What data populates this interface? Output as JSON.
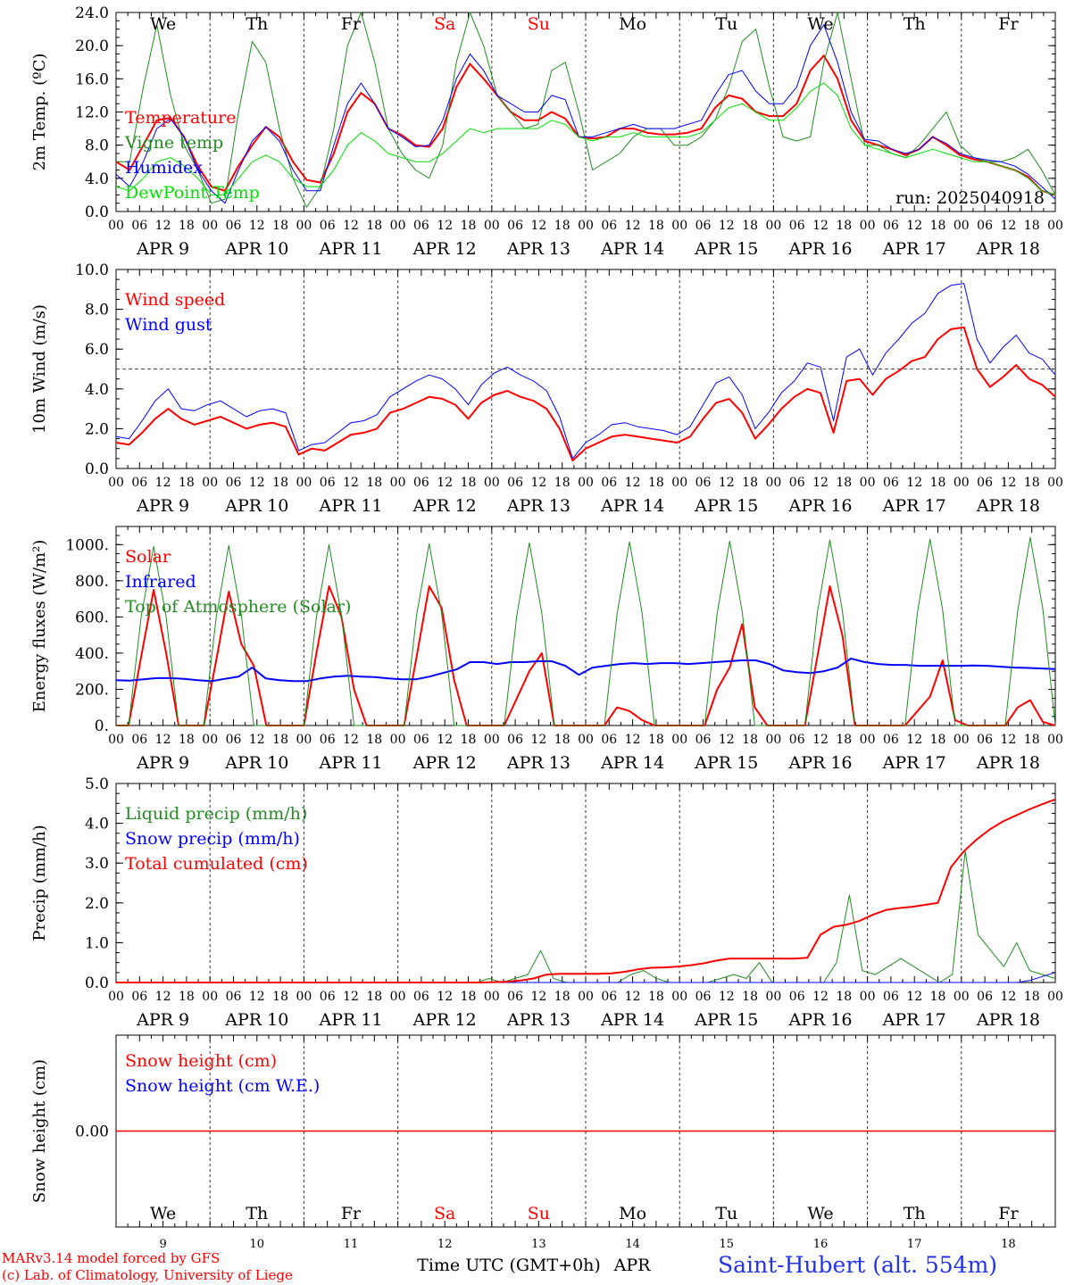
{
  "run_label": "run: 2025040918",
  "x_axis": {
    "hour_labels": [
      "00",
      "06",
      "12",
      "18"
    ],
    "day_labels": [
      "APR  9",
      "APR 10",
      "APR 11",
      "APR 12",
      "APR 13",
      "APR 14",
      "APR 15",
      "APR 16",
      "APR 17",
      "APR 18"
    ],
    "weekdays": [
      {
        "label": "We",
        "color": "#000000"
      },
      {
        "label": "Th",
        "color": "#000000"
      },
      {
        "label": "Fr",
        "color": "#000000"
      },
      {
        "label": "Sa",
        "color": "#ff0000"
      },
      {
        "label": "Su",
        "color": "#ff0000"
      },
      {
        "label": "Mo",
        "color": "#000000"
      },
      {
        "label": "Tu",
        "color": "#000000"
      },
      {
        "label": "We",
        "color": "#000000"
      },
      {
        "label": "Th",
        "color": "#000000"
      },
      {
        "label": "Fr",
        "color": "#000000"
      }
    ],
    "day_numbers": [
      "9",
      "10",
      "11",
      "12",
      "13",
      "14",
      "15",
      "16",
      "17",
      "18"
    ],
    "title": "Time UTC (GMT+0h)",
    "month": "APR"
  },
  "footer": {
    "model_line": "MARv3.14 model forced by GFS",
    "copyright_line": "(c) Lab. of Climatology, University of Liege",
    "station": "Saint-Hubert (alt. 554m)"
  },
  "chart_data": [
    {
      "type": "line",
      "ylabel": "2m Temp. (ºC)",
      "ylim": [
        0,
        24
      ],
      "yticks": [
        "0.0",
        "4.0",
        "8.0",
        "12.0",
        "16.0",
        "20.0",
        "24.0"
      ],
      "ytick_values": [
        0,
        4,
        8,
        12,
        16,
        20,
        24
      ],
      "x_hours_step": 3,
      "series": [
        {
          "name": "Temperature",
          "color": "#ff0000",
          "width": 2,
          "values": [
            6,
            5,
            8,
            11,
            11.3,
            9,
            5.5,
            3,
            2.5,
            5.5,
            8,
            10.2,
            9,
            6,
            3.8,
            3.5,
            7,
            12,
            14.3,
            13,
            10,
            9.2,
            8,
            7.8,
            10,
            15,
            17.8,
            16,
            14,
            12,
            11,
            11,
            12,
            11.2,
            9,
            8.8,
            9,
            10,
            10,
            9.5,
            9.3,
            9.3,
            9.5,
            10,
            12.5,
            14,
            13.6,
            12,
            11.5,
            11.5,
            13,
            17,
            18.8,
            16,
            11,
            8.5,
            8,
            7.5,
            6.8,
            7.5,
            9,
            8,
            6.8,
            6.3,
            6,
            5.5,
            5,
            4.2,
            2.5,
            2
          ]
        },
        {
          "name": "Vigne temp",
          "color": "#228b22",
          "width": 1,
          "values": [
            6,
            6,
            15,
            22.5,
            14,
            8,
            5,
            1,
            1.5,
            12,
            20.5,
            18,
            10,
            4,
            0.5,
            3,
            10,
            20,
            24,
            18,
            10,
            7,
            5,
            4,
            8,
            18,
            24,
            20,
            14,
            12,
            10,
            10.5,
            17,
            18,
            12,
            5,
            6,
            7,
            9,
            10,
            10,
            8,
            8,
            9,
            11,
            15,
            20.5,
            22,
            15,
            9,
            8.5,
            9,
            18,
            24,
            16,
            8,
            8,
            7,
            6.5,
            8,
            10,
            12,
            8,
            6.5,
            6,
            6,
            6.5,
            7.5,
            5,
            2
          ]
        },
        {
          "name": "Humidex",
          "color": "#0000ff",
          "width": 1,
          "values": [
            4.5,
            3,
            6,
            10,
            11.2,
            9,
            5,
            2.5,
            1,
            5,
            8.5,
            10.2,
            8.5,
            5,
            2.5,
            2.5,
            8,
            13,
            15.5,
            13,
            10,
            9,
            7.8,
            8,
            11,
            16,
            19,
            17,
            14,
            13,
            12,
            12,
            14,
            13.5,
            9,
            9,
            9.5,
            10,
            10.5,
            10,
            10,
            10,
            10.5,
            11,
            14,
            16.5,
            17,
            14.5,
            13,
            13,
            15,
            20,
            22.5,
            18,
            12,
            8.7,
            8.5,
            7.5,
            7,
            7.5,
            9,
            8.2,
            7,
            6.5,
            6.2,
            6,
            5.5,
            4.5,
            3,
            1.5
          ]
        },
        {
          "name": "DewPoint Temp",
          "color": "#00e000",
          "width": 1,
          "values": [
            3,
            2.5,
            4,
            6,
            6.5,
            5.5,
            4,
            2,
            2,
            4,
            6,
            6.8,
            6,
            4,
            3,
            3,
            5,
            8,
            9.5,
            8.5,
            7,
            6.5,
            6,
            6,
            7,
            8.5,
            10,
            9.5,
            10,
            10,
            10,
            10,
            11,
            10.5,
            9,
            8.5,
            9,
            9,
            9.5,
            9,
            9,
            9,
            9,
            9.5,
            11,
            12.5,
            13,
            12,
            11,
            11,
            12.5,
            14.5,
            15.5,
            14,
            10,
            8,
            7.5,
            7,
            6.5,
            7,
            7.5,
            7,
            6.5,
            6,
            6,
            5.5,
            5,
            4,
            2.5,
            2
          ]
        }
      ],
      "legend_position": "left"
    },
    {
      "type": "line",
      "ylabel": "10m Wind (m/s)",
      "ylim": [
        0,
        10
      ],
      "yticks": [
        "0.0",
        "2.0",
        "4.0",
        "6.0",
        "8.0",
        "10.0"
      ],
      "ytick_values": [
        0,
        2,
        4,
        6,
        8,
        10
      ],
      "reference_line": 5,
      "x_hours_step": 3,
      "series": [
        {
          "name": "Wind speed",
          "color": "#ff0000",
          "width": 2,
          "values": [
            1.3,
            1.2,
            1.8,
            2.5,
            3,
            2.5,
            2.2,
            2.4,
            2.6,
            2.3,
            2,
            2.2,
            2.3,
            2.1,
            0.7,
            1,
            0.9,
            1.3,
            1.7,
            1.8,
            2,
            2.8,
            3,
            3.3,
            3.6,
            3.5,
            3.2,
            2.5,
            3.3,
            3.7,
            3.9,
            3.6,
            3.4,
            3,
            2,
            0.4,
            1,
            1.3,
            1.6,
            1.7,
            1.6,
            1.5,
            1.4,
            1.3,
            1.6,
            2.5,
            3.3,
            3.5,
            2.8,
            1.5,
            2.2,
            3,
            3.6,
            4,
            3.8,
            1.8,
            4.4,
            4.5,
            3.7,
            4.5,
            4.9,
            5.4,
            5.6,
            6.5,
            7,
            7.1,
            5,
            4.1,
            4.6,
            5.2,
            4.5,
            4.2,
            3.6
          ]
        },
        {
          "name": "Wind gust",
          "color": "#0000ff",
          "width": 1,
          "values": [
            1.6,
            1.5,
            2.4,
            3.4,
            4,
            3,
            2.9,
            3.2,
            3.4,
            3,
            2.6,
            2.9,
            3,
            2.8,
            0.9,
            1.2,
            1.3,
            1.8,
            2.3,
            2.4,
            2.7,
            3.6,
            4,
            4.4,
            4.7,
            4.5,
            4,
            3.2,
            4.2,
            4.8,
            5.1,
            4.7,
            4.4,
            3.9,
            2.6,
            0.5,
            1.3,
            1.7,
            2.2,
            2.3,
            2.1,
            2,
            1.9,
            1.7,
            2.1,
            3.2,
            4.3,
            4.6,
            3.7,
            2,
            2.8,
            3.8,
            4.4,
            5.3,
            5.1,
            2.4,
            5.6,
            6,
            4.7,
            5.8,
            6.5,
            7.3,
            7.8,
            8.8,
            9.2,
            9.3,
            6.5,
            5.3,
            6.1,
            6.7,
            5.8,
            5.5,
            4.7
          ]
        }
      ],
      "legend_position": "left"
    },
    {
      "type": "line",
      "ylabel": "Energy fluxes (W/m²)",
      "ylim": [
        0,
        1100
      ],
      "yticks": [
        "0.",
        "200.",
        "400.",
        "600.",
        "800.",
        "1000."
      ],
      "ytick_values": [
        0,
        200,
        400,
        600,
        800,
        1000
      ],
      "x_hours_step": 3,
      "series": [
        {
          "name": "Solar",
          "color": "#ff0000",
          "width": 2,
          "values": [
            0,
            0,
            380,
            750,
            400,
            0,
            0,
            0,
            360,
            740,
            450,
            330,
            0,
            0,
            0,
            0,
            400,
            770,
            600,
            200,
            0,
            0,
            0,
            0,
            380,
            770,
            650,
            250,
            0,
            0,
            0,
            0,
            150,
            300,
            400,
            0,
            0,
            0,
            0,
            0,
            100,
            80,
            30,
            0,
            0,
            0,
            0,
            0,
            200,
            320,
            560,
            100,
            0,
            0,
            0,
            0,
            380,
            770,
            500,
            0,
            0,
            0,
            0,
            0,
            80,
            160,
            360,
            30,
            0,
            0,
            0,
            0,
            100,
            140,
            20,
            0
          ]
        },
        {
          "name": "Infrared",
          "color": "#0000ff",
          "width": 2,
          "values": [
            250,
            248,
            255,
            262,
            262,
            258,
            250,
            245,
            258,
            270,
            320,
            260,
            250,
            245,
            245,
            260,
            270,
            275,
            270,
            268,
            260,
            255,
            255,
            270,
            290,
            310,
            350,
            350,
            340,
            350,
            350,
            355,
            355,
            330,
            280,
            320,
            330,
            340,
            345,
            340,
            345,
            345,
            340,
            345,
            350,
            355,
            360,
            360,
            340,
            305,
            295,
            290,
            300,
            320,
            370,
            350,
            340,
            335,
            335,
            330,
            330,
            330,
            330,
            332,
            330,
            325,
            320,
            318,
            315,
            312
          ]
        },
        {
          "name": "Top of Atmosphere (Solar)",
          "color": "#228b22",
          "width": 1,
          "values": [
            0,
            0,
            600,
            990,
            600,
            0,
            0,
            0,
            600,
            995,
            610,
            0,
            0,
            0,
            0,
            0,
            600,
            1000,
            610,
            0,
            0,
            0,
            0,
            0,
            610,
            1005,
            620,
            0,
            0,
            0,
            0,
            0,
            610,
            1010,
            620,
            0,
            0,
            0,
            0,
            0,
            615,
            1015,
            625,
            0,
            0,
            0,
            0,
            0,
            620,
            1020,
            630,
            0,
            0,
            0,
            0,
            0,
            625,
            1025,
            635,
            0,
            0,
            0,
            0,
            0,
            630,
            1030,
            640,
            0,
            0,
            0,
            0,
            0,
            635,
            1040,
            645,
            0
          ]
        }
      ],
      "legend_position": "left"
    },
    {
      "type": "line",
      "ylabel": "Precip (mm/h)",
      "ylim": [
        0,
        5
      ],
      "yticks": [
        "0.0",
        "1.0",
        "2.0",
        "3.0",
        "4.0",
        "5.0"
      ],
      "ytick_values": [
        0,
        1,
        2,
        3,
        4,
        5
      ],
      "x_hours_step": 3,
      "series": [
        {
          "name": "Liquid precip (mm/h)",
          "color": "#228b22",
          "width": 1,
          "values": [
            0,
            0,
            0,
            0,
            0,
            0,
            0,
            0,
            0,
            0,
            0,
            0,
            0,
            0,
            0,
            0,
            0,
            0,
            0,
            0,
            0,
            0,
            0,
            0,
            0,
            0,
            0,
            0,
            0,
            0.1,
            0,
            0.1,
            0.2,
            0.8,
            0.1,
            0,
            0,
            0,
            0,
            0,
            0.2,
            0.3,
            0.1,
            0,
            0,
            0,
            0,
            0.1,
            0.2,
            0.1,
            0.5,
            0,
            0,
            0,
            0,
            0,
            0.5,
            2.2,
            0.3,
            0.2,
            0.4,
            0.6,
            0.4,
            0.2,
            0,
            0.2,
            3.3,
            1.2,
            0.8,
            0.4,
            1,
            0.3,
            0.2,
            0.1
          ]
        },
        {
          "name": "Snow precip (mm/h)",
          "color": "#0000ff",
          "width": 1,
          "values": [
            0,
            0,
            0,
            0,
            0,
            0,
            0,
            0,
            0,
            0,
            0,
            0,
            0,
            0,
            0,
            0,
            0,
            0,
            0,
            0,
            0,
            0,
            0,
            0,
            0,
            0,
            0,
            0,
            0,
            0,
            0,
            0,
            0,
            0,
            0,
            0,
            0,
            0,
            0,
            0,
            0,
            0,
            0,
            0,
            0,
            0,
            0,
            0,
            0,
            0,
            0,
            0,
            0,
            0,
            0,
            0,
            0,
            0,
            0,
            0,
            0,
            0,
            0,
            0,
            0,
            0,
            0,
            0,
            0,
            0,
            0,
            0.05,
            0.15,
            0.25
          ]
        },
        {
          "name": "Total cumulated (cm)",
          "color": "#ff0000",
          "width": 2,
          "values": [
            0,
            0,
            0,
            0,
            0,
            0,
            0,
            0,
            0,
            0,
            0,
            0,
            0,
            0,
            0,
            0,
            0,
            0,
            0,
            0,
            0,
            0,
            0,
            0,
            0,
            0,
            0,
            0,
            0,
            0.01,
            0.02,
            0.05,
            0.1,
            0.2,
            0.22,
            0.22,
            0.22,
            0.22,
            0.23,
            0.27,
            0.33,
            0.37,
            0.38,
            0.4,
            0.43,
            0.48,
            0.55,
            0.6,
            0.6,
            0.6,
            0.6,
            0.6,
            0.6,
            0.62,
            1.2,
            1.4,
            1.45,
            1.55,
            1.7,
            1.82,
            1.87,
            1.9,
            1.95,
            2.0,
            2.9,
            3.3,
            3.6,
            3.85,
            4.05,
            4.2,
            4.35,
            4.48,
            4.6
          ]
        }
      ],
      "legend_position": "left"
    },
    {
      "type": "line",
      "ylabel": "Snow height (cm)",
      "yticks": [
        "0.00"
      ],
      "ytick_values": [
        0
      ],
      "ylim": [
        -1,
        1
      ],
      "x_hours_step": 3,
      "series": [
        {
          "name": "Snow height (cm)",
          "color": "#ff0000",
          "width": 1.5,
          "values": [
            0,
            0
          ]
        },
        {
          "name": "Snow height (cm W.E.)",
          "color": "#0000ff",
          "width": 1.5,
          "values": []
        }
      ],
      "legend_position": "left"
    }
  ]
}
